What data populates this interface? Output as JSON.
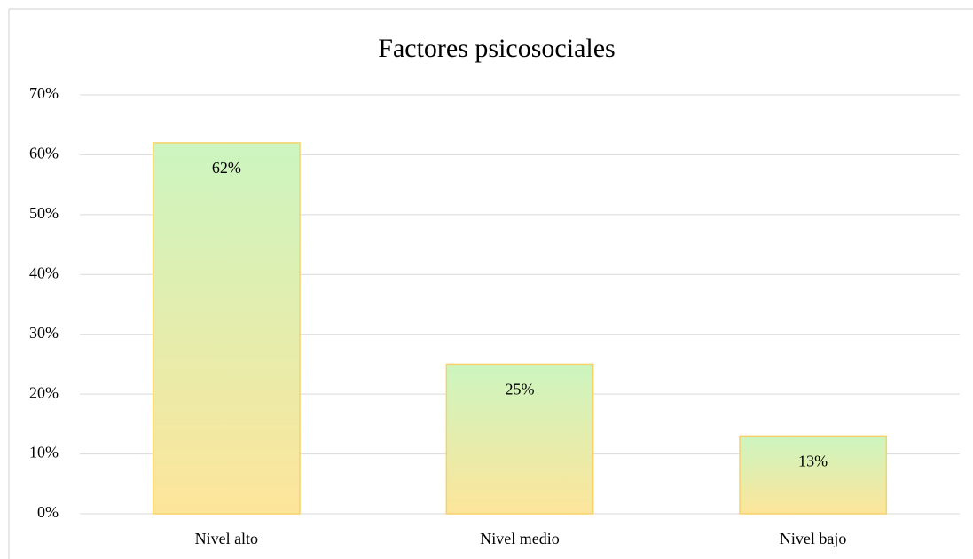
{
  "chart_data": {
    "type": "bar",
    "title": "Factores psicosociales",
    "categories": [
      "Nivel alto",
      "Nivel medio",
      "Nivel bajo"
    ],
    "values": [
      62,
      25,
      13
    ],
    "value_labels": [
      "62%",
      "25%",
      "13%"
    ],
    "color": "#fde59a",
    "ylim": [
      0,
      70
    ],
    "yticks": [
      {
        "value": 0,
        "label": "0%"
      },
      {
        "value": 10,
        "label": "10%"
      },
      {
        "value": 20,
        "label": "20%"
      },
      {
        "value": 30,
        "label": "30%"
      },
      {
        "value": 40,
        "label": "40%"
      },
      {
        "value": 50,
        "label": "50%"
      },
      {
        "value": 60,
        "label": "60%"
      },
      {
        "value": 70,
        "label": "70%"
      }
    ],
    "grid": true
  }
}
